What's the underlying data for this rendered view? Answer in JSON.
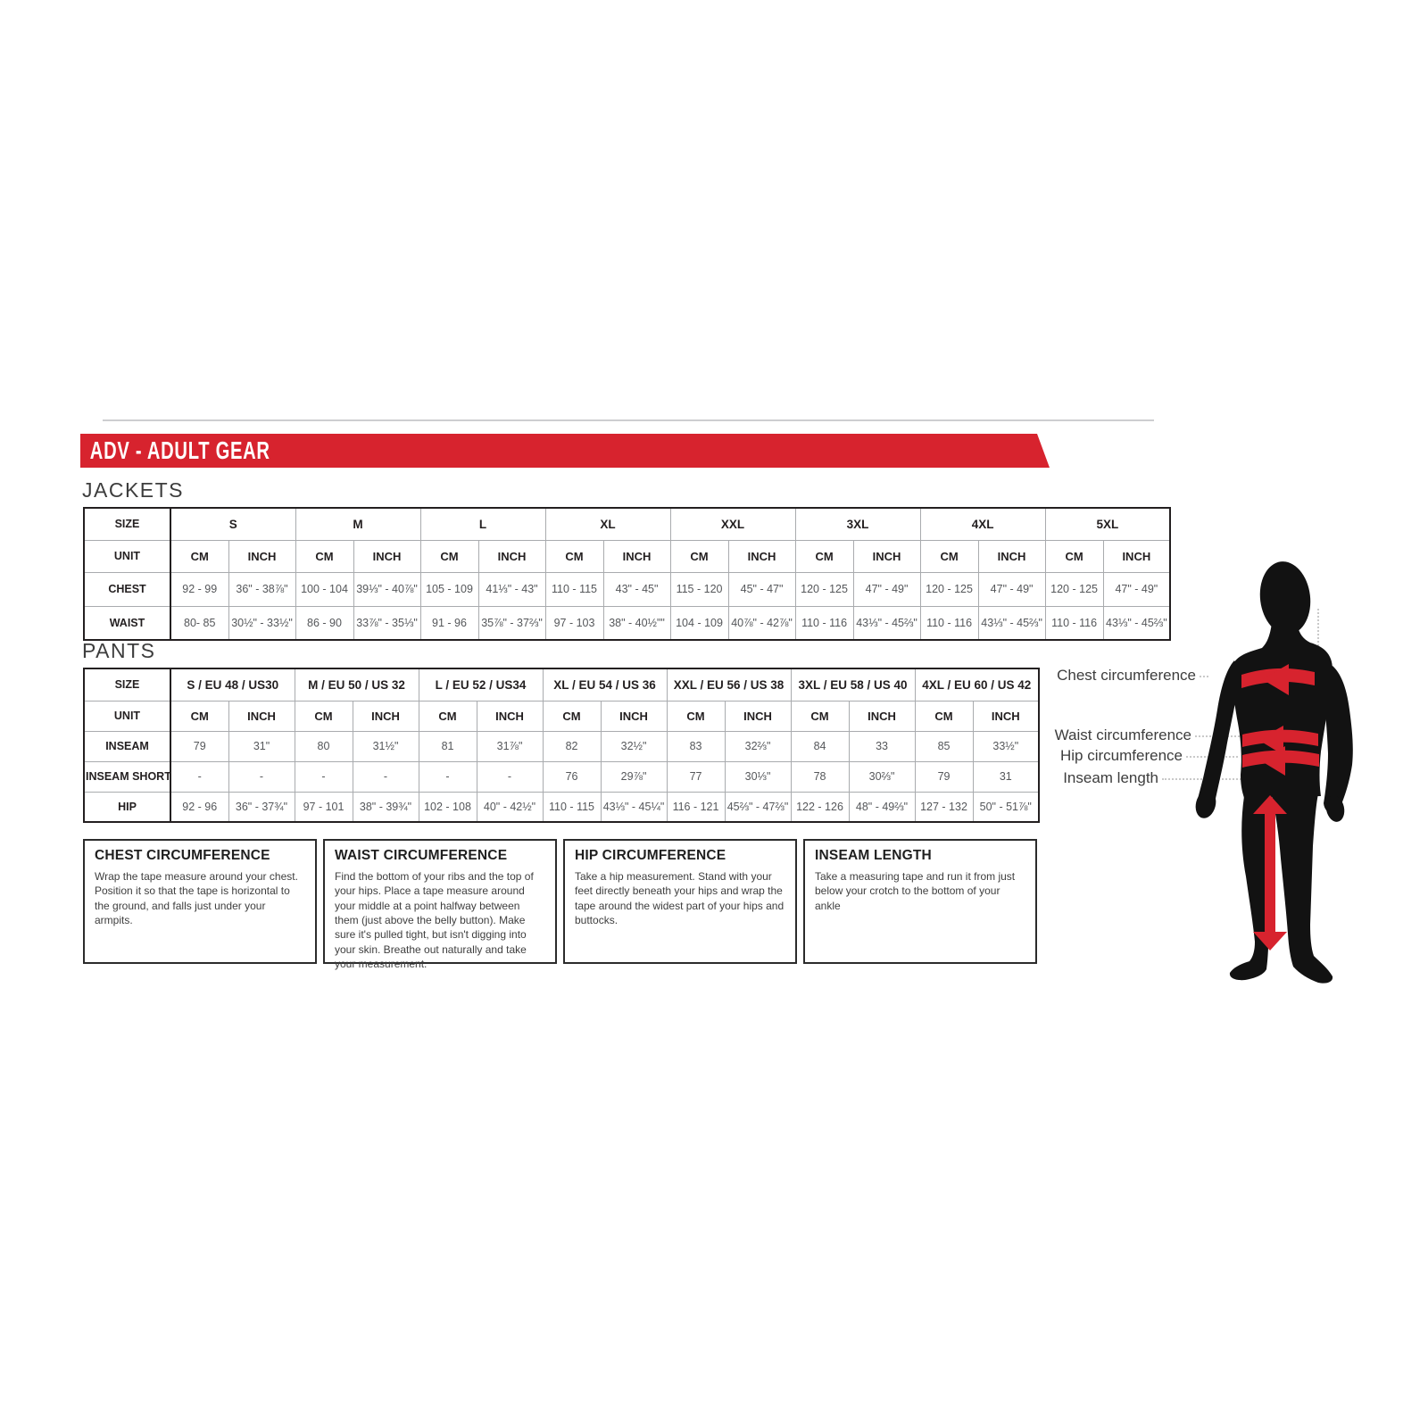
{
  "banner": {
    "title": "ADV - ADULT GEAR",
    "color": "#d7232e"
  },
  "jackets": {
    "label": "JACKETS",
    "size_label": "SIZE",
    "unit_label": "UNIT",
    "cm_label": "CM",
    "inch_label": "INCH",
    "sizes": [
      "S",
      "M",
      "L",
      "XL",
      "XXL",
      "3XL",
      "4XL",
      "5XL"
    ],
    "rows": [
      {
        "label": "CHEST",
        "cm": [
          "92 - 99",
          "100 - 104",
          "105 - 109",
          "110 - 115",
          "115 - 120",
          "120 - 125",
          "120 - 125",
          "120 - 125"
        ],
        "inch": [
          "36\" - 38⅞\"",
          "39⅓\" - 40⅞\"",
          "41⅓\" - 43\"",
          "43\" - 45\"",
          "45\" - 47\"",
          "47\" - 49\"",
          "47\" - 49\"",
          "47\" - 49\""
        ]
      },
      {
        "label": "WAIST",
        "cm": [
          "80- 85",
          "86 - 90",
          "91 - 96",
          "97 - 103",
          "104 - 109",
          "110 - 116",
          "110 - 116",
          "110 - 116"
        ],
        "inch": [
          "30½\" - 33½\"",
          "33⅞\" - 35⅓\"",
          "35⅞\" - 37⅔\"",
          "38\" - 40½\"\"",
          "40⅞\" - 42⅞\"",
          "43⅓\" - 45⅔\"",
          "43⅓\" - 45⅔\"",
          "43⅓\" - 45⅔\""
        ]
      }
    ]
  },
  "pants": {
    "label": "PANTS",
    "size_label": "SIZE",
    "unit_label": "UNIT",
    "cm_label": "CM",
    "inch_label": "INCH",
    "sizes": [
      "S / EU 48 / US30",
      "M / EU 50 / US 32",
      "L / EU 52 / US34",
      "XL / EU 54 / US 36",
      "XXL / EU 56 / US 38",
      "3XL / EU 58 / US 40",
      "4XL / EU 60 / US 42"
    ],
    "rows": [
      {
        "label": "INSEAM",
        "cm": [
          "79",
          "80",
          "81",
          "82",
          "83",
          "84",
          "85"
        ],
        "inch": [
          "31\"",
          "31½\"",
          "31⅞\"",
          "32½\"",
          "32⅔\"",
          "33",
          "33½\""
        ]
      },
      {
        "label": "INSEAM SHORT",
        "cm": [
          "-",
          "-",
          "-",
          "76",
          "77",
          "78",
          "79"
        ],
        "inch": [
          "-",
          "-",
          "-",
          "29⅞\"",
          "30⅓\"",
          "30⅔\"",
          "31"
        ]
      },
      {
        "label": "HIP",
        "cm": [
          "92 - 96",
          "97 - 101",
          "102 - 108",
          "110 - 115",
          "116 - 121",
          "122 - 126",
          "127 - 132"
        ],
        "inch": [
          "36\" - 37¾\"",
          "38\" - 39¾\"",
          "40\" - 42½\"",
          "43⅓\" - 45¼\"",
          "45⅔\" - 47⅔\"",
          "48\" - 49⅔\"",
          "50\" - 51⅞\""
        ]
      }
    ]
  },
  "boxes": [
    {
      "title": "CHEST CIRCUMFERENCE",
      "body": "Wrap the tape measure around your chest. Position it so that the tape is horizontal to the ground, and falls just under your armpits."
    },
    {
      "title": "WAIST CIRCUMFERENCE",
      "body": "Find the bottom of your ribs and the top of your hips. Place a tape measure around your middle at a point halfway between them (just above the belly button). Make sure it's pulled tight, but isn't digging into your skin. Breathe out naturally and take your measurement."
    },
    {
      "title": "HIP CIRCUMFERENCE",
      "body": "Take a hip measurement. Stand with your feet directly beneath your hips and wrap the tape around the widest part of your hips and buttocks."
    },
    {
      "title": "INSEAM LENGTH",
      "body": "Take a measuring tape and run it from just below your crotch to the bottom of your ankle"
    }
  ],
  "figure": {
    "chest_label": "Chest circumference",
    "waist_label": "Waist circumference",
    "hip_label": "Hip circumference",
    "inseam_label": "Inseam length",
    "arrow_color": "#d7232e",
    "silhouette_color": "#121212"
  }
}
